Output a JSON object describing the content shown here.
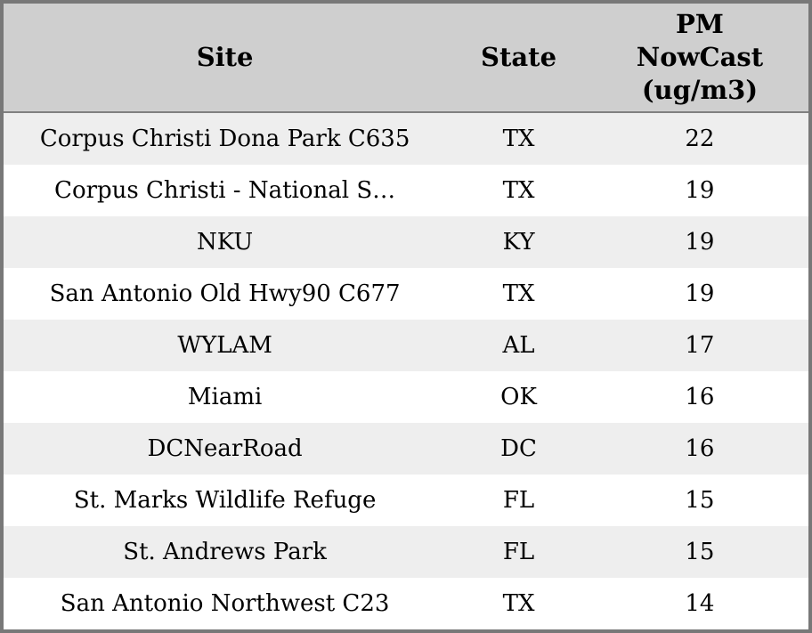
{
  "colors": {
    "outer_border": "#787878",
    "header_bg": "#cfcfcf",
    "header_separator": "#808080",
    "row_stripe": "#eeeeee",
    "row_plain": "#ffffff",
    "text": "#000000"
  },
  "header_display": {
    "site_label": "Site",
    "state_label": "State",
    "pm_header_lines": [
      "PM",
      "NowCast",
      "(ug/m3)"
    ]
  },
  "chart_data": {
    "type": "table",
    "columns": [
      "Site",
      "State",
      "PM NowCast (ug/m3)"
    ],
    "rows": [
      [
        "Corpus Christi Dona Park C635",
        "TX",
        22
      ],
      [
        "Corpus Christi - National S…",
        "TX",
        19
      ],
      [
        "NKU",
        "KY",
        19
      ],
      [
        "San Antonio Old Hwy90 C677",
        "TX",
        19
      ],
      [
        "WYLAM",
        "AL",
        17
      ],
      [
        "Miami",
        "OK",
        16
      ],
      [
        "DCNearRoad",
        "DC",
        16
      ],
      [
        "St. Marks Wildlife Refuge",
        "FL",
        15
      ],
      [
        "St. Andrews Park",
        "FL",
        15
      ],
      [
        "San Antonio Northwest C23",
        "TX",
        14
      ]
    ]
  }
}
